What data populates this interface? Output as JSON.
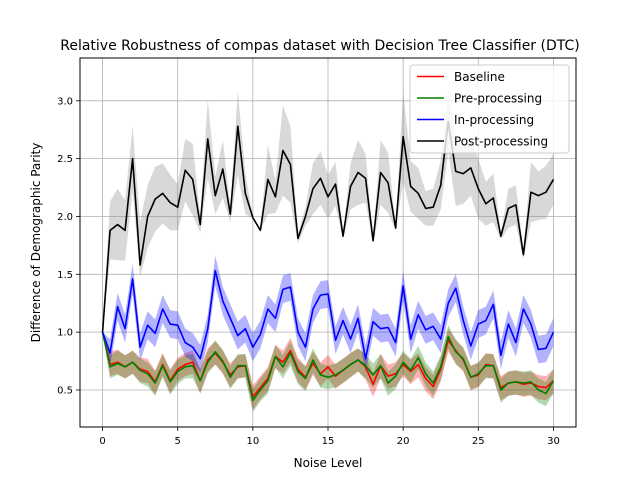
{
  "chart_data": {
    "type": "line",
    "title": "Relative Robustness of compas dataset with Decision Tree Classifier (DTC)",
    "xlabel": "Noise Level",
    "ylabel": "Difference of Demographic Parity",
    "xlim": [
      -1.5,
      31.5
    ],
    "ylim": [
      0.18,
      3.37
    ],
    "xticks": [
      0,
      5,
      10,
      15,
      20,
      25,
      30
    ],
    "yticks": [
      0.5,
      1.0,
      1.5,
      2.0,
      2.5,
      3.0
    ],
    "ytick_labels": [
      "0.5",
      "1.0",
      "1.5",
      "2.0",
      "2.5",
      "3.0"
    ],
    "grid": true,
    "legend_position": "top-right",
    "x": [
      0,
      0.5,
      1,
      1.5,
      2,
      2.5,
      3,
      3.5,
      4,
      4.5,
      5,
      5.5,
      6,
      6.5,
      7,
      7.5,
      8,
      8.5,
      9,
      9.5,
      10,
      10.5,
      11,
      11.5,
      12,
      12.5,
      13,
      13.5,
      14,
      14.5,
      15,
      15.5,
      16,
      16.5,
      17,
      17.5,
      18,
      18.5,
      19,
      19.5,
      20,
      20.5,
      21,
      21.5,
      22,
      22.5,
      23,
      23.5,
      24,
      24.5,
      25,
      25.5,
      26,
      26.5,
      27,
      27.5,
      28,
      28.5,
      29,
      29.5,
      30
    ],
    "series": [
      {
        "name": "Baseline",
        "color": "#ff0000",
        "values": [
          1.0,
          0.72,
          0.74,
          0.7,
          0.74,
          0.68,
          0.66,
          0.57,
          0.72,
          0.58,
          0.68,
          0.72,
          0.74,
          0.58,
          0.76,
          0.82,
          0.74,
          0.63,
          0.7,
          0.71,
          0.44,
          0.52,
          0.6,
          0.79,
          0.74,
          0.84,
          0.68,
          0.61,
          0.73,
          0.64,
          0.7,
          0.62,
          0.67,
          0.72,
          0.76,
          0.7,
          0.55,
          0.71,
          0.62,
          0.64,
          0.72,
          0.66,
          0.72,
          0.6,
          0.53,
          0.68,
          0.93,
          0.84,
          0.76,
          0.61,
          0.63,
          0.72,
          0.71,
          0.52,
          0.56,
          0.57,
          0.55,
          0.56,
          0.53,
          0.52,
          0.58
        ],
        "lower": [
          1.0,
          0.62,
          0.64,
          0.6,
          0.64,
          0.57,
          0.56,
          0.46,
          0.62,
          0.47,
          0.58,
          0.62,
          0.64,
          0.47,
          0.66,
          0.72,
          0.64,
          0.52,
          0.6,
          0.61,
          0.33,
          0.42,
          0.49,
          0.69,
          0.64,
          0.74,
          0.57,
          0.5,
          0.63,
          0.53,
          0.6,
          0.51,
          0.56,
          0.61,
          0.66,
          0.59,
          0.44,
          0.6,
          0.51,
          0.53,
          0.62,
          0.55,
          0.61,
          0.49,
          0.42,
          0.57,
          0.83,
          0.73,
          0.66,
          0.5,
          0.52,
          0.61,
          0.6,
          0.41,
          0.45,
          0.46,
          0.44,
          0.45,
          0.42,
          0.41,
          0.47
        ],
        "upper": [
          1.0,
          0.83,
          0.85,
          0.8,
          0.84,
          0.78,
          0.77,
          0.67,
          0.82,
          0.68,
          0.78,
          0.82,
          0.84,
          0.68,
          0.86,
          0.92,
          0.84,
          0.73,
          0.8,
          0.81,
          0.54,
          0.62,
          0.7,
          0.89,
          0.84,
          0.95,
          0.78,
          0.71,
          0.83,
          0.74,
          0.8,
          0.72,
          0.77,
          0.82,
          0.86,
          0.8,
          0.65,
          0.81,
          0.72,
          0.74,
          0.82,
          0.76,
          0.82,
          0.7,
          0.63,
          0.78,
          1.03,
          0.94,
          0.86,
          0.71,
          0.73,
          0.82,
          0.81,
          0.62,
          0.66,
          0.67,
          0.65,
          0.66,
          0.63,
          0.62,
          0.68
        ]
      },
      {
        "name": "Pre-processing",
        "color": "#008000",
        "values": [
          1.0,
          0.7,
          0.73,
          0.7,
          0.74,
          0.67,
          0.64,
          0.56,
          0.71,
          0.57,
          0.66,
          0.7,
          0.71,
          0.58,
          0.74,
          0.83,
          0.75,
          0.61,
          0.71,
          0.71,
          0.41,
          0.5,
          0.58,
          0.79,
          0.7,
          0.82,
          0.66,
          0.6,
          0.76,
          0.63,
          0.61,
          0.63,
          0.67,
          0.72,
          0.76,
          0.71,
          0.63,
          0.71,
          0.56,
          0.62,
          0.74,
          0.67,
          0.78,
          0.64,
          0.56,
          0.7,
          0.96,
          0.83,
          0.77,
          0.61,
          0.64,
          0.71,
          0.71,
          0.5,
          0.56,
          0.57,
          0.56,
          0.57,
          0.5,
          0.47,
          0.58
        ],
        "lower": [
          1.0,
          0.6,
          0.63,
          0.6,
          0.64,
          0.56,
          0.53,
          0.45,
          0.61,
          0.46,
          0.55,
          0.6,
          0.6,
          0.47,
          0.64,
          0.72,
          0.65,
          0.51,
          0.6,
          0.61,
          0.31,
          0.4,
          0.47,
          0.69,
          0.6,
          0.71,
          0.55,
          0.49,
          0.65,
          0.52,
          0.51,
          0.52,
          0.56,
          0.61,
          0.66,
          0.6,
          0.52,
          0.6,
          0.45,
          0.51,
          0.64,
          0.56,
          0.68,
          0.53,
          0.45,
          0.59,
          0.86,
          0.72,
          0.67,
          0.5,
          0.53,
          0.6,
          0.6,
          0.39,
          0.45,
          0.46,
          0.45,
          0.46,
          0.39,
          0.36,
          0.47
        ],
        "upper": [
          1.0,
          0.8,
          0.84,
          0.8,
          0.84,
          0.77,
          0.74,
          0.66,
          0.81,
          0.67,
          0.76,
          0.8,
          0.81,
          0.68,
          0.84,
          0.93,
          0.85,
          0.71,
          0.81,
          0.81,
          0.51,
          0.6,
          0.68,
          0.89,
          0.8,
          0.92,
          0.76,
          0.7,
          0.86,
          0.73,
          0.71,
          0.73,
          0.77,
          0.82,
          0.86,
          0.81,
          0.73,
          0.81,
          0.66,
          0.72,
          0.84,
          0.77,
          0.88,
          0.74,
          0.66,
          0.8,
          1.06,
          0.93,
          0.87,
          0.71,
          0.74,
          0.81,
          0.81,
          0.6,
          0.66,
          0.67,
          0.66,
          0.67,
          0.6,
          0.57,
          0.68
        ]
      },
      {
        "name": "In-processing",
        "color": "#0000ff",
        "values": [
          1.0,
          0.82,
          1.22,
          1.03,
          1.46,
          0.87,
          1.06,
          0.99,
          1.2,
          1.07,
          1.06,
          0.91,
          0.87,
          0.77,
          1.03,
          1.53,
          1.27,
          1.12,
          0.97,
          1.03,
          0.87,
          0.98,
          1.2,
          1.12,
          1.37,
          1.39,
          1.0,
          0.87,
          1.2,
          1.32,
          1.33,
          0.93,
          1.1,
          0.94,
          1.12,
          0.77,
          1.09,
          1.03,
          1.04,
          0.91,
          1.4,
          0.94,
          1.15,
          1.02,
          1.05,
          0.94,
          1.25,
          1.38,
          1.1,
          0.88,
          1.07,
          1.1,
          1.24,
          0.8,
          1.07,
          0.91,
          1.2,
          1.07,
          0.85,
          0.86,
          1.0
        ],
        "lower": [
          1.0,
          0.7,
          1.1,
          0.91,
          1.33,
          0.75,
          0.94,
          0.87,
          1.08,
          0.95,
          0.94,
          0.79,
          0.75,
          0.65,
          0.91,
          1.4,
          1.15,
          1.0,
          0.85,
          0.91,
          0.75,
          0.86,
          1.08,
          1.0,
          1.25,
          1.27,
          0.88,
          0.75,
          1.08,
          1.2,
          1.21,
          0.81,
          0.98,
          0.82,
          1.0,
          0.65,
          0.97,
          0.91,
          0.92,
          0.79,
          1.27,
          0.82,
          1.03,
          0.9,
          0.93,
          0.82,
          1.13,
          1.26,
          0.98,
          0.76,
          0.95,
          0.98,
          1.12,
          0.68,
          0.95,
          0.79,
          1.08,
          0.95,
          0.73,
          0.74,
          0.88
        ],
        "upper": [
          1.0,
          0.94,
          1.34,
          1.15,
          1.59,
          0.99,
          1.18,
          1.11,
          1.32,
          1.19,
          1.18,
          1.03,
          0.99,
          0.89,
          1.15,
          1.66,
          1.39,
          1.24,
          1.09,
          1.15,
          0.99,
          1.1,
          1.32,
          1.24,
          1.49,
          1.51,
          1.12,
          0.99,
          1.32,
          1.44,
          1.45,
          1.05,
          1.22,
          1.06,
          1.24,
          0.89,
          1.21,
          1.15,
          1.16,
          1.03,
          1.53,
          1.06,
          1.27,
          1.14,
          1.17,
          1.06,
          1.37,
          1.5,
          1.22,
          1.0,
          1.19,
          1.22,
          1.36,
          0.92,
          1.19,
          1.03,
          1.32,
          1.19,
          0.97,
          0.98,
          1.12
        ]
      },
      {
        "name": "Post-processing",
        "color": "#000000",
        "values": [
          1.0,
          1.88,
          1.93,
          1.88,
          2.5,
          1.58,
          2.0,
          2.15,
          2.2,
          2.12,
          2.08,
          2.4,
          2.32,
          1.93,
          2.67,
          2.18,
          2.41,
          2.02,
          2.78,
          2.2,
          1.99,
          1.88,
          2.32,
          2.17,
          2.57,
          2.45,
          1.81,
          2.0,
          2.24,
          2.33,
          2.17,
          2.28,
          1.83,
          2.26,
          2.38,
          2.33,
          1.79,
          2.38,
          2.29,
          1.9,
          2.69,
          2.26,
          2.2,
          2.07,
          2.08,
          2.27,
          2.82,
          2.39,
          2.37,
          2.42,
          2.24,
          2.11,
          2.16,
          1.83,
          2.07,
          2.1,
          1.67,
          2.21,
          2.18,
          2.21,
          2.32
        ],
        "lower": [
          1.0,
          1.63,
          1.62,
          1.62,
          2.22,
          1.48,
          1.73,
          1.87,
          1.94,
          1.88,
          1.88,
          2.13,
          2.01,
          1.86,
          2.33,
          2.02,
          2.16,
          1.95,
          2.36,
          2.02,
          1.98,
          1.87,
          2.02,
          2.03,
          2.18,
          2.12,
          1.77,
          1.92,
          2.02,
          2.1,
          1.98,
          2.09,
          1.81,
          2.06,
          2.1,
          2.12,
          1.77,
          2.1,
          2.03,
          1.88,
          2.3,
          2.04,
          1.98,
          1.92,
          1.92,
          2.06,
          2.56,
          2.09,
          2.11,
          2.18,
          1.98,
          1.92,
          1.95,
          1.8,
          1.9,
          1.93,
          1.63,
          1.95,
          1.97,
          1.98,
          2.1
        ],
        "upper": [
          1.0,
          2.13,
          2.24,
          2.14,
          2.78,
          1.95,
          2.27,
          2.43,
          2.46,
          2.36,
          2.28,
          2.67,
          2.63,
          2.0,
          3.01,
          2.34,
          2.66,
          2.09,
          3.08,
          2.38,
          2.0,
          1.89,
          2.62,
          2.31,
          2.96,
          2.78,
          1.85,
          2.08,
          2.46,
          2.56,
          2.36,
          2.47,
          1.85,
          2.46,
          2.66,
          2.54,
          1.81,
          2.66,
          2.55,
          1.92,
          3.08,
          2.48,
          2.42,
          2.22,
          2.24,
          2.48,
          3.08,
          2.69,
          2.63,
          2.66,
          2.5,
          2.3,
          2.37,
          1.86,
          2.24,
          2.27,
          1.71,
          2.47,
          2.39,
          2.44,
          2.54
        ]
      }
    ]
  }
}
